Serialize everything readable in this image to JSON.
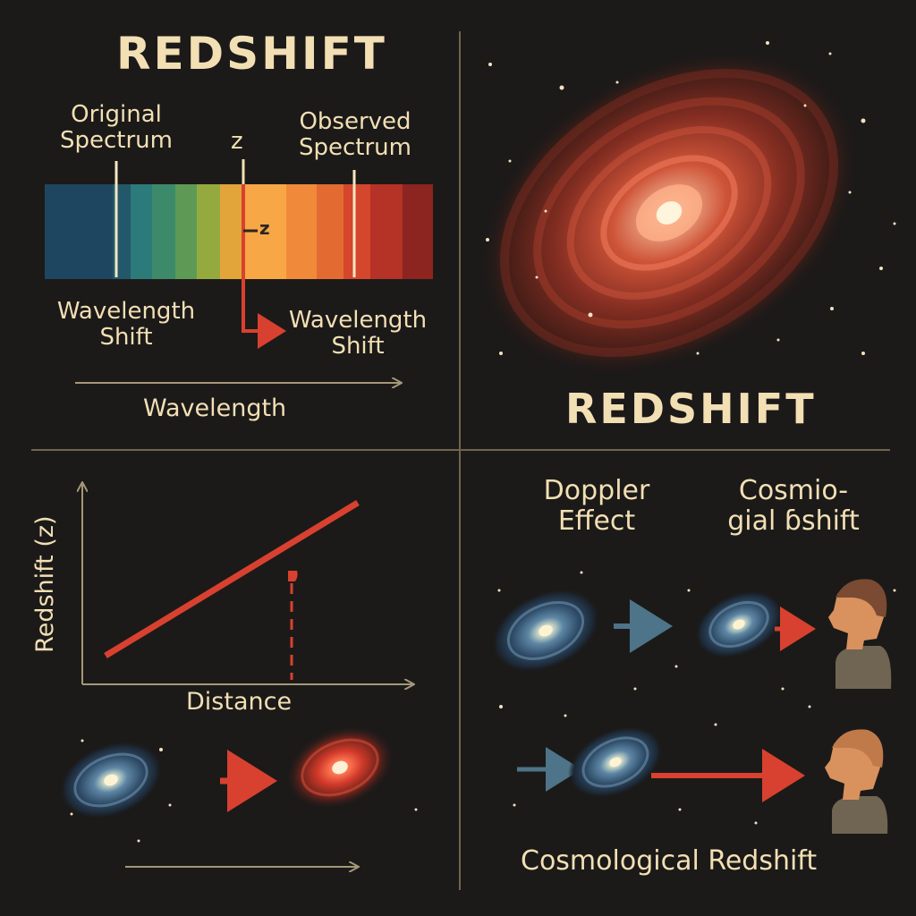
{
  "quadrant_tl": {
    "title": "REDSHIFT",
    "original_label_1": "Original",
    "original_label_2": "Spectrum",
    "z_top": "z",
    "observed_label_1": "Observed",
    "observed_label_2": "Spectrum",
    "z_marker": "z",
    "shift_left_1": "Wavelength",
    "shift_left_2": "Shift",
    "shift_right_1": "Wavelength",
    "shift_right_2": "Shift",
    "axis_label": "Wavelength"
  },
  "quadrant_tr": {
    "title": "REDSHIFT"
  },
  "quadrant_bl": {
    "ylabel": "Redshift (z)",
    "xlabel": "Distance"
  },
  "quadrant_br": {
    "doppler_1": "Doppler",
    "doppler_2": "Effect",
    "cosmo_1": "Cosmio-",
    "cosmo_2": "gial ɓshift",
    "caption": "Cosmological Redshift"
  },
  "colors": {
    "background": "#1b1a19",
    "text": "#f3dfb4",
    "divider": "#6f6550",
    "arrow_red": "#d8412f",
    "arrow_blue": "#4d7488"
  }
}
